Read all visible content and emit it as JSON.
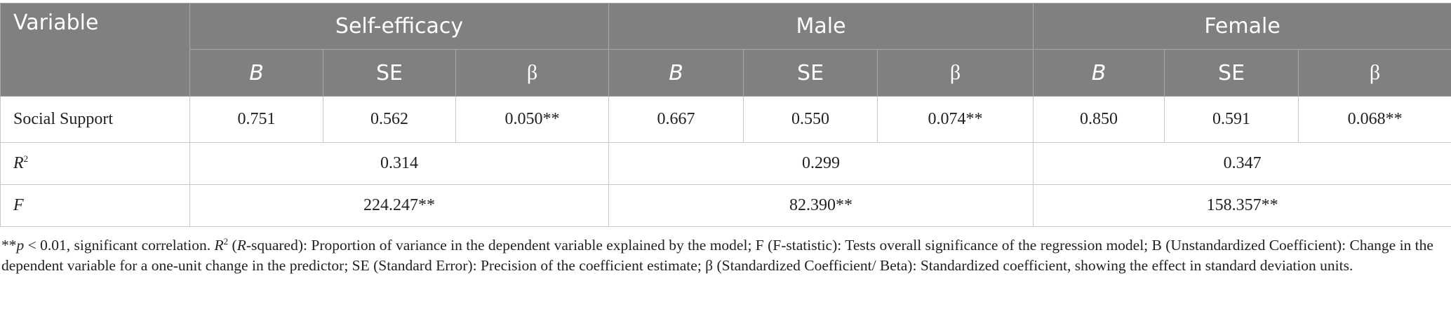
{
  "table": {
    "header": [
      "Variable",
      "Self-efficacy",
      "Male",
      "Female"
    ],
    "subheader": [
      {
        "text": "B",
        "italic": true
      },
      {
        "text": "SE",
        "italic": false
      },
      {
        "text": "β",
        "italic": false
      },
      {
        "text": "B",
        "italic": true
      },
      {
        "text": "SE",
        "italic": false
      },
      {
        "text": "β",
        "italic": false
      },
      {
        "text": "B",
        "italic": true
      },
      {
        "text": "SE",
        "italic": false
      },
      {
        "text": "β",
        "italic": false
      }
    ],
    "rows": [
      {
        "label": "Social Support",
        "cells": [
          "0.751",
          "0.562",
          "0.050**",
          "0.667",
          "0.550",
          "0.074**",
          "0.850",
          "0.591",
          "0.068**"
        ]
      },
      {
        "label": "R",
        "label_sup": "2",
        "cells": [
          "0.314",
          "0.299",
          "0.347"
        ]
      },
      {
        "label": "F",
        "cells": [
          "224.247**",
          "82.390**",
          "158.357**"
        ]
      }
    ]
  },
  "footnote": [
    {
      "text": "**"
    },
    {
      "text": "p",
      "style": "i"
    },
    {
      "text": " < 0.01, significant correlation. "
    },
    {
      "text": "R",
      "style": "i"
    },
    {
      "text": "2",
      "style": "sup"
    },
    {
      "text": " ("
    },
    {
      "text": "R",
      "style": "i"
    },
    {
      "text": "-squared): Proportion of variance in the dependent variable explained by the model; F (F-statistic): Tests overall significance of the regression model; B (Unstandardized Coefficient): Change in the dependent variable for a one-unit change in the predictor; SE (Standard Error): Precision of the coefficient estimate; β (Standardized Coefficient/ Beta): Standardized coefficient, showing the effect in standard deviation units."
    }
  ]
}
